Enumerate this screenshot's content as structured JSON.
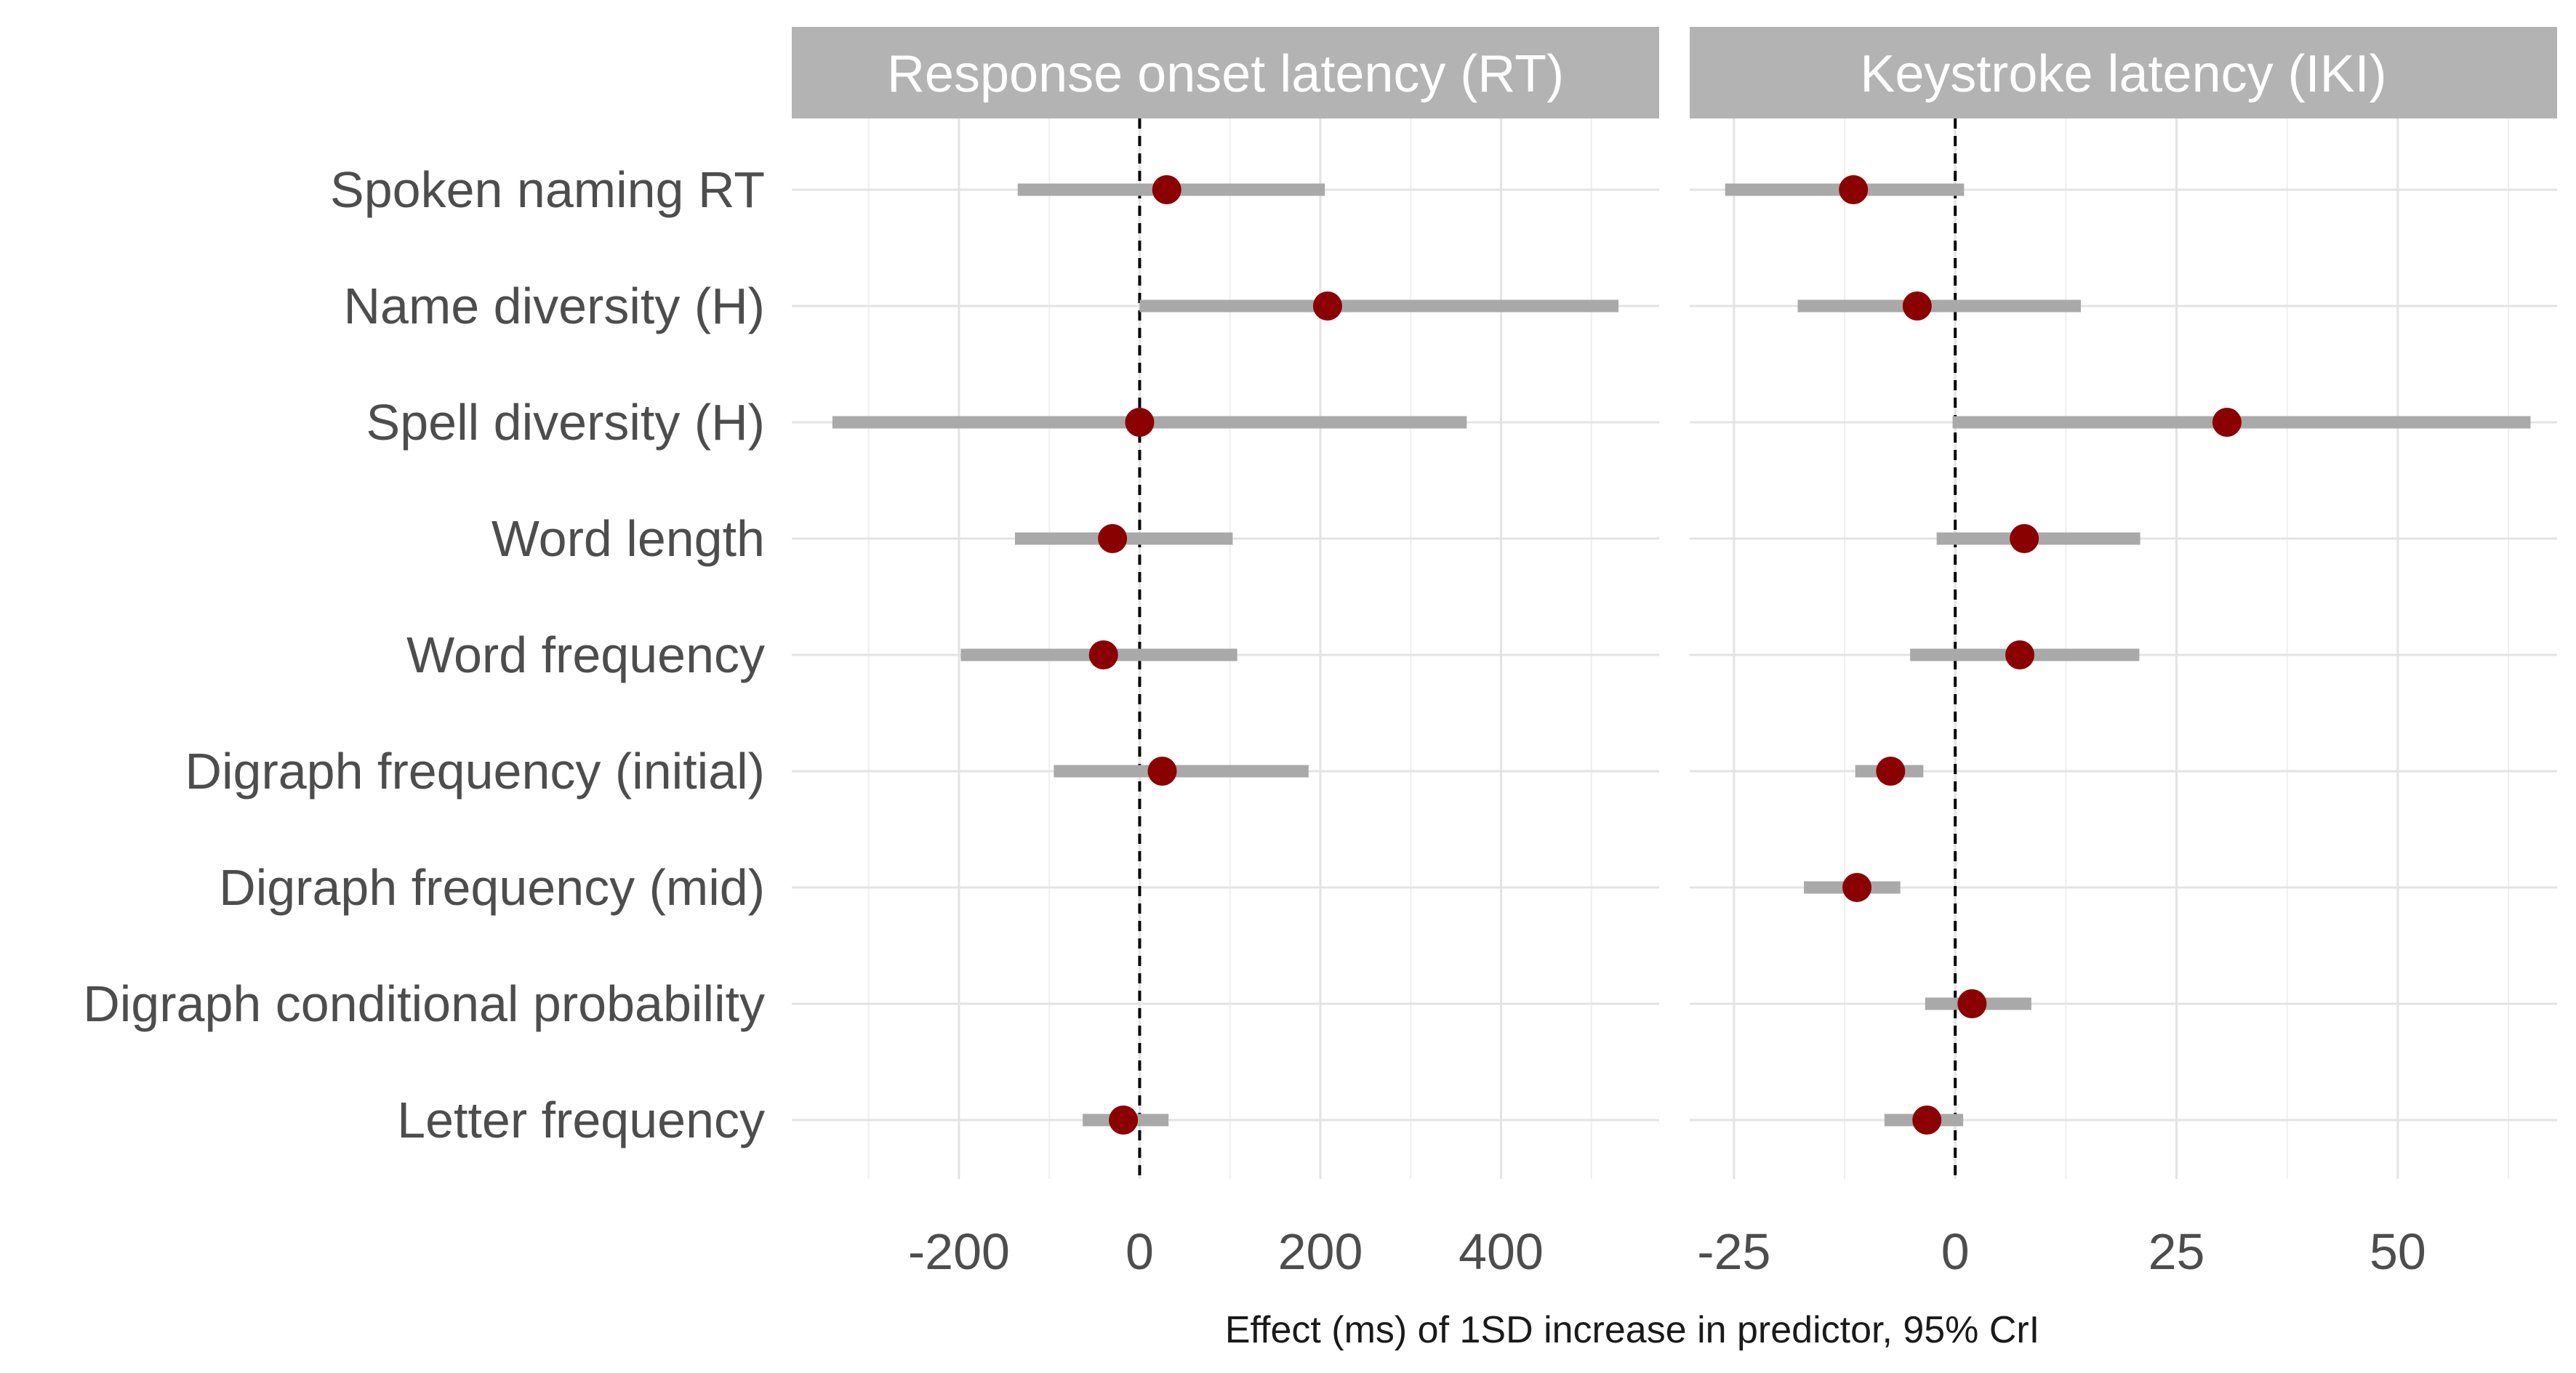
{
  "chart_data": {
    "type": "forest",
    "xlabel": "Effect (ms) of 1SD increase in predictor, 95% CrI",
    "predictors": [
      "Spoken naming RT",
      "Name diversity (H)",
      "Spell diversity (H)",
      "Word length",
      "Word frequency",
      "Digraph frequency (initial)",
      "Digraph frequency (mid)",
      "Digraph conditional probability",
      "Letter frequency"
    ],
    "colors": {
      "point": "#8b0000",
      "interval": "#a9a9a9",
      "strip": "#b3b3b3"
    },
    "panels": [
      {
        "title": "Response onset latency (RT)",
        "xlim": [
          -385,
          575
        ],
        "xticks": [
          -200,
          0,
          200,
          400
        ],
        "xtick_labels": [
          "-200",
          "0",
          "200",
          "400"
        ],
        "minor_ticks": [
          -300,
          -100,
          100,
          300,
          500
        ],
        "estimates": [
          {
            "predictor": "Spoken naming RT",
            "est": 30,
            "lower": -135,
            "upper": 205
          },
          {
            "predictor": "Name diversity (H)",
            "est": 208,
            "lower": 0,
            "upper": 530
          },
          {
            "predictor": "Spell diversity (H)",
            "est": 0,
            "lower": -340,
            "upper": 362
          },
          {
            "predictor": "Word length",
            "est": -30,
            "lower": -138,
            "upper": 103
          },
          {
            "predictor": "Word frequency",
            "est": -40,
            "lower": -198,
            "upper": 108
          },
          {
            "predictor": "Digraph frequency (initial)",
            "est": 25,
            "lower": -95,
            "upper": 187
          },
          {
            "predictor": "Digraph frequency (mid)",
            "est": null,
            "lower": null,
            "upper": null
          },
          {
            "predictor": "Digraph conditional probability",
            "est": null,
            "lower": null,
            "upper": null
          },
          {
            "predictor": "Letter frequency",
            "est": -18,
            "lower": -63,
            "upper": 32
          }
        ]
      },
      {
        "title": "Keystroke latency (IKI)",
        "xlim": [
          -30,
          68
        ],
        "xticks": [
          -25,
          0,
          25,
          50
        ],
        "xtick_labels": [
          "-25",
          "0",
          "25",
          "50"
        ],
        "minor_ticks": [
          -12.5,
          12.5,
          37.5,
          62.5
        ],
        "estimates": [
          {
            "predictor": "Spoken naming RT",
            "est": -11.5,
            "lower": -26,
            "upper": 1
          },
          {
            "predictor": "Name diversity (H)",
            "est": -4.3,
            "lower": -17.8,
            "upper": 14.2
          },
          {
            "predictor": "Spell diversity (H)",
            "est": 30.7,
            "lower": -0.3,
            "upper": 65
          },
          {
            "predictor": "Word length",
            "est": 7.8,
            "lower": -2.1,
            "upper": 20.9
          },
          {
            "predictor": "Word frequency",
            "est": 7.3,
            "lower": -5.1,
            "upper": 20.8
          },
          {
            "predictor": "Digraph frequency (initial)",
            "est": -7.3,
            "lower": -11.3,
            "upper": -3.6
          },
          {
            "predictor": "Digraph frequency (mid)",
            "est": -11.1,
            "lower": -17.1,
            "upper": -6.2
          },
          {
            "predictor": "Digraph conditional probability",
            "est": 1.9,
            "lower": -3.4,
            "upper": 8.6
          },
          {
            "predictor": "Letter frequency",
            "est": -3.2,
            "lower": -8,
            "upper": 0.9
          }
        ]
      }
    ]
  }
}
